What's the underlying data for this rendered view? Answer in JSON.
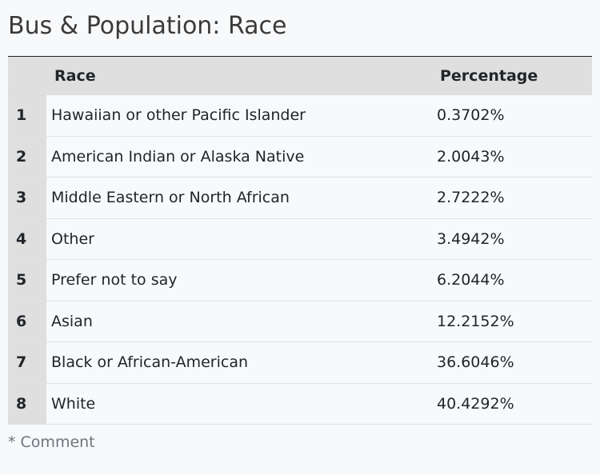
{
  "title": "Bus & Population: Race",
  "table": {
    "columns": [
      "",
      "Race",
      "Percentage"
    ],
    "rows": [
      {
        "index": "1",
        "race": "Hawaiian or other Pacific Islander",
        "percentage": "0.3702%"
      },
      {
        "index": "2",
        "race": "American Indian or Alaska Native",
        "percentage": "2.0043%"
      },
      {
        "index": "3",
        "race": "Middle Eastern or North African",
        "percentage": "2.7222%"
      },
      {
        "index": "4",
        "race": "Other",
        "percentage": "3.4942%"
      },
      {
        "index": "5",
        "race": "Prefer not to say",
        "percentage": "6.2044%"
      },
      {
        "index": "6",
        "race": "Asian",
        "percentage": "12.2152%"
      },
      {
        "index": "7",
        "race": "Black or African-American",
        "percentage": "36.6046%"
      },
      {
        "index": "8",
        "race": "White",
        "percentage": "40.4292%"
      }
    ]
  },
  "footnote": "* Comment"
}
